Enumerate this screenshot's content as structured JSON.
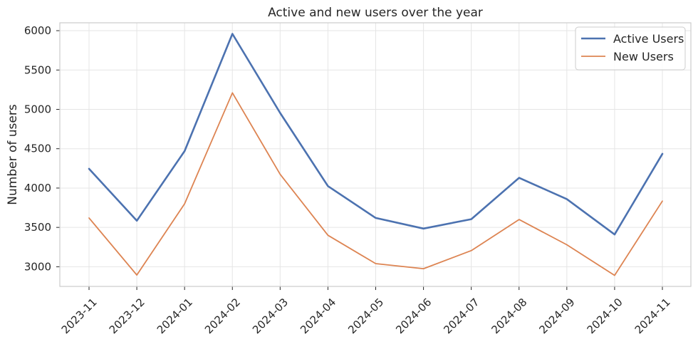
{
  "chart_data": {
    "type": "line",
    "title": "Active and new users over the year",
    "xlabel": "",
    "ylabel": "Number of users",
    "categories": [
      "2023-11",
      "2023-12",
      "2024-01",
      "2024-02",
      "2024-03",
      "2024-04",
      "2024-05",
      "2024-06",
      "2024-07",
      "2024-08",
      "2024-09",
      "2024-10",
      "2024-11"
    ],
    "ylim": [
      2750,
      6100
    ],
    "yticks": [
      3000,
      3500,
      4000,
      4500,
      5000,
      5500,
      6000
    ],
    "grid": true,
    "legend_position": "top-right",
    "series": [
      {
        "name": "Active Users",
        "color": "#4c72b0",
        "values": [
          4245,
          3585,
          4470,
          5960,
          4955,
          4025,
          3620,
          3485,
          3605,
          4130,
          3860,
          3410,
          4435
        ]
      },
      {
        "name": "New Users",
        "color": "#dd8452",
        "values": [
          3620,
          2895,
          3800,
          5210,
          4175,
          3400,
          3040,
          2975,
          3205,
          3600,
          3280,
          2890,
          3835
        ]
      }
    ]
  }
}
